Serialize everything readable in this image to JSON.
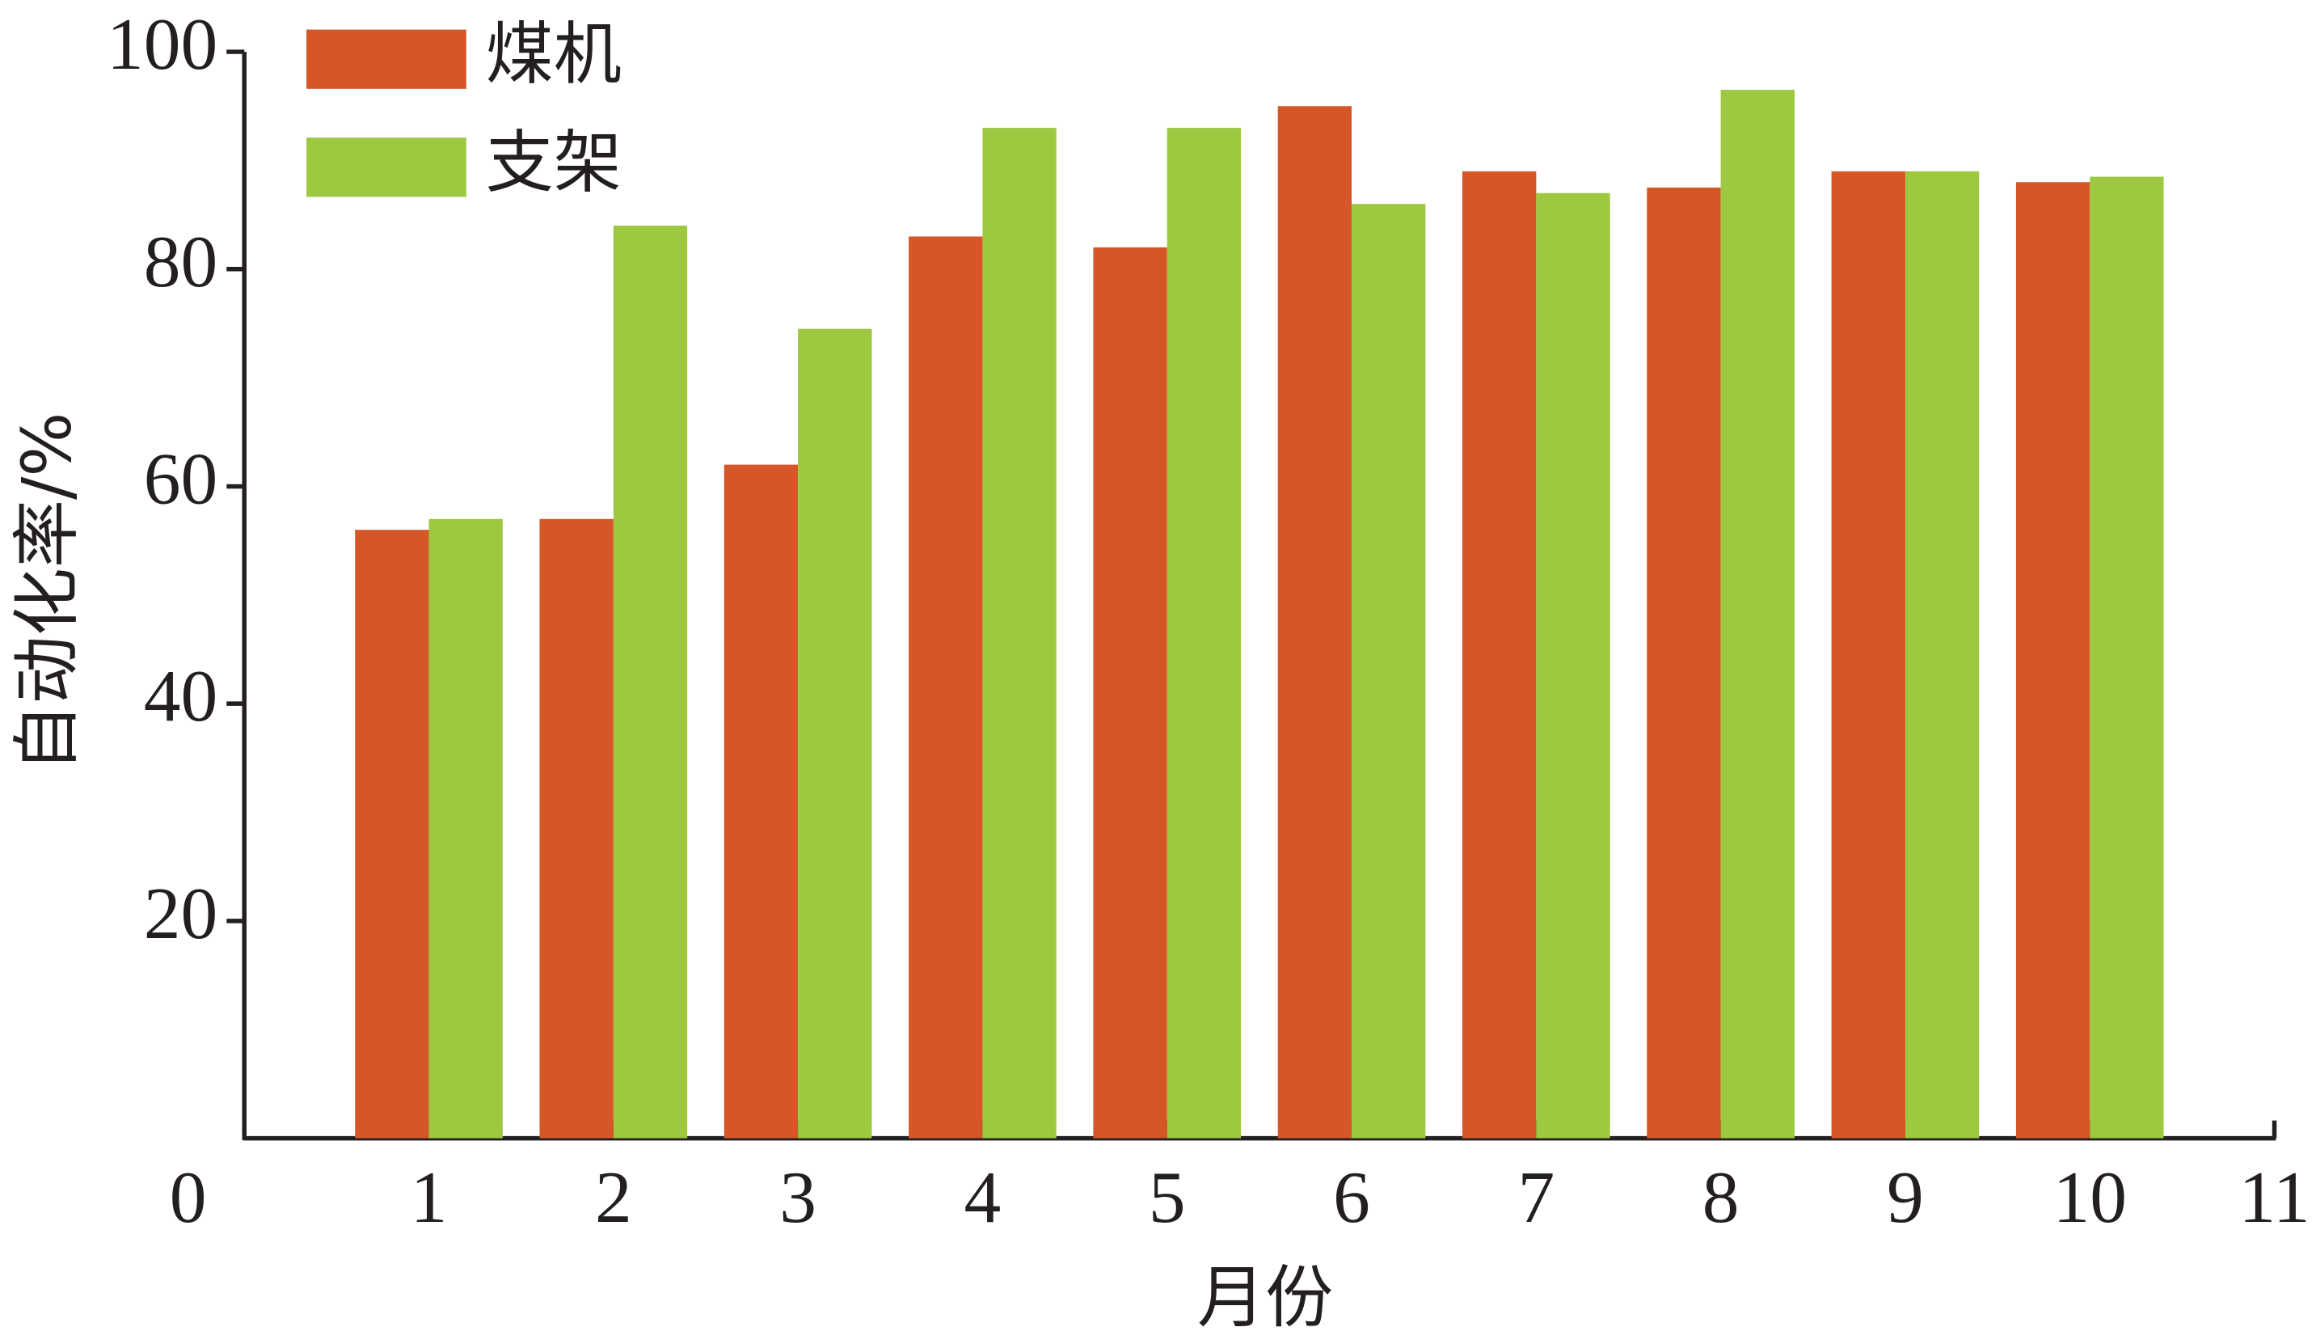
{
  "chart_data": {
    "type": "bar",
    "x_label": "月份",
    "y_label": "自动化率/%",
    "x": [
      1,
      2,
      3,
      4,
      5,
      6,
      7,
      8,
      9,
      10
    ],
    "series": [
      {
        "name": "煤机",
        "color": "#d55627",
        "values": [
          56,
          57,
          62,
          83,
          82,
          95,
          89,
          87.5,
          89,
          88
        ]
      },
      {
        "name": "支架",
        "color": "#9dc83f",
        "values": [
          57,
          84,
          74.5,
          93,
          93,
          86,
          87,
          96.5,
          89,
          88.5
        ]
      }
    ],
    "xlim": [
      0,
      11
    ],
    "xticks": [
      0,
      1,
      2,
      3,
      4,
      5,
      6,
      7,
      8,
      9,
      10,
      11
    ],
    "ylim": [
      0,
      100
    ],
    "yticks": [
      20,
      40,
      60,
      80,
      100
    ],
    "grid": false,
    "legend": "top-left"
  }
}
